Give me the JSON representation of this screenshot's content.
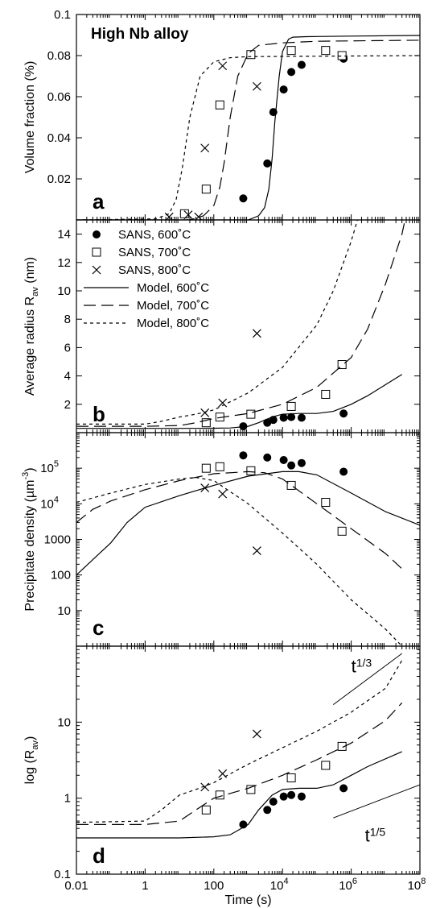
{
  "figure": {
    "title": "High Nb alloy",
    "x_axis": {
      "label": "Time (s)",
      "scale": "log",
      "range": [
        0.01,
        100000000
      ],
      "ticks": [
        {
          "value": 0.01,
          "label": "0.01",
          "base": "",
          "exp": ""
        },
        {
          "value": 1,
          "label": "1",
          "base": "",
          "exp": ""
        },
        {
          "value": 100,
          "label": "100",
          "base": "",
          "exp": ""
        },
        {
          "value": 10000,
          "label": "",
          "base": "10",
          "exp": "4"
        },
        {
          "value": 1000000,
          "label": "",
          "base": "10",
          "exp": "6"
        },
        {
          "value": 100000000,
          "label": "",
          "base": "10",
          "exp": "8"
        }
      ]
    },
    "legend": {
      "position": "top-left of panel b",
      "entries": [
        {
          "label": "SANS, 600˚C",
          "marker": "filled-circle"
        },
        {
          "label": "SANS, 700˚C",
          "marker": "open-square"
        },
        {
          "label": "SANS, 800˚C",
          "marker": "cross"
        },
        {
          "label": "Model, 600˚C",
          "line": "solid"
        },
        {
          "label": "Model, 700˚C",
          "line": "long-dash"
        },
        {
          "label": "Model, 800˚C",
          "line": "short-dash"
        }
      ]
    }
  },
  "chart_data": [
    {
      "panel": "a",
      "type": "scatter",
      "ylabel": "Volume fraction (%)",
      "yscale": "linear",
      "ylim": [
        0,
        0.1
      ],
      "yticks": [
        {
          "value": 0.02,
          "label": "0.02"
        },
        {
          "value": 0.04,
          "label": "0.04"
        },
        {
          "value": 0.06,
          "label": "0.06"
        },
        {
          "value": 0.08,
          "label": "0.08"
        },
        {
          "value": 0.1,
          "label": "0.1"
        }
      ],
      "series": [
        {
          "name": "SANS, 600˚C",
          "kind": "points",
          "marker": "filled-circle",
          "x": [
            720,
            3600,
            5400,
            10800,
            18000,
            36000,
            600000
          ],
          "y": [
            0.0105,
            0.0275,
            0.0525,
            0.0635,
            0.072,
            0.0755,
            0.0785
          ]
        },
        {
          "name": "SANS, 700˚C",
          "kind": "points",
          "marker": "open-square",
          "x": [
            14,
            60,
            150,
            1200,
            18000,
            180000,
            540000
          ],
          "y": [
            0.003,
            0.015,
            0.056,
            0.0805,
            0.0825,
            0.0825,
            0.08
          ]
        },
        {
          "name": "SANS, 800˚C",
          "kind": "points",
          "marker": "cross",
          "x": [
            5,
            18,
            36,
            55,
            180,
            1800
          ],
          "y": [
            0.0015,
            0.0025,
            0.0015,
            0.035,
            0.075,
            0.065
          ]
        },
        {
          "name": "Model, 600˚C",
          "kind": "line",
          "line": "solid",
          "x": [
            0.01,
            1000,
            2000,
            3000,
            4000,
            5000,
            6000,
            8000,
            10000,
            15000,
            20000,
            50000,
            100000,
            1000000,
            100000000
          ],
          "y": [
            0,
            0,
            0.002,
            0.006,
            0.015,
            0.03,
            0.048,
            0.07,
            0.082,
            0.088,
            0.089,
            0.0892,
            0.0893,
            0.0895,
            0.0898
          ]
        },
        {
          "name": "Model, 700˚C",
          "kind": "line",
          "line": "long-dash",
          "x": [
            0.01,
            20,
            50,
            100,
            150,
            200,
            300,
            500,
            1000,
            2000,
            10000,
            100000,
            100000000
          ],
          "y": [
            0,
            0,
            0.002,
            0.007,
            0.016,
            0.028,
            0.05,
            0.07,
            0.081,
            0.085,
            0.0862,
            0.087,
            0.0875
          ]
        },
        {
          "name": "Model, 800˚C",
          "kind": "line",
          "line": "short-dash",
          "x": [
            0.01,
            2,
            5,
            8,
            12,
            20,
            40,
            100,
            300,
            1000,
            100000000
          ],
          "y": [
            0,
            0.0005,
            0.003,
            0.01,
            0.025,
            0.05,
            0.07,
            0.077,
            0.079,
            0.0795,
            0.08
          ]
        }
      ]
    },
    {
      "panel": "b",
      "type": "scatter",
      "ylabel": "Average radius R",
      "ylabel_sub": "av",
      "ylabel_unit": " (nm)",
      "yscale": "linear",
      "ylim": [
        0,
        15
      ],
      "yticks": [
        {
          "value": 2,
          "label": "2"
        },
        {
          "value": 4,
          "label": "4"
        },
        {
          "value": 6,
          "label": "6"
        },
        {
          "value": 8,
          "label": "8"
        },
        {
          "value": 10,
          "label": "10"
        },
        {
          "value": 12,
          "label": "12"
        },
        {
          "value": 14,
          "label": "14"
        }
      ],
      "series": [
        {
          "name": "SANS, 600˚C",
          "kind": "points",
          "marker": "filled-circle",
          "x": [
            720,
            3600,
            5400,
            10800,
            18000,
            36000,
            600000
          ],
          "y": [
            0.45,
            0.7,
            0.9,
            1.05,
            1.1,
            1.05,
            1.35
          ]
        },
        {
          "name": "SANS, 700˚C",
          "kind": "points",
          "marker": "open-square",
          "x": [
            60,
            150,
            1200,
            18000,
            180000,
            540000
          ],
          "y": [
            0.7,
            1.1,
            1.3,
            1.85,
            2.7,
            4.8
          ]
        },
        {
          "name": "SANS, 800˚C",
          "kind": "points",
          "marker": "cross",
          "x": [
            55,
            180,
            1800
          ],
          "y": [
            1.4,
            2.1,
            7
          ]
        },
        {
          "name": "Model, 600˚C",
          "kind": "line",
          "line": "solid",
          "x": [
            0.01,
            10,
            100,
            300,
            1000,
            2000,
            5000,
            10000,
            30000,
            100000,
            300000,
            1000000,
            3000000,
            30000000
          ],
          "y": [
            0.3,
            0.3,
            0.31,
            0.33,
            0.45,
            0.7,
            1.1,
            1.3,
            1.35,
            1.35,
            1.5,
            2.0,
            2.6,
            4.1
          ]
        },
        {
          "name": "Model, 700˚C",
          "kind": "line",
          "line": "long-dash",
          "x": [
            0.01,
            1,
            10,
            30,
            100,
            1000,
            10000,
            100000,
            1000000,
            3000000,
            10000000,
            30000000,
            50000000
          ],
          "y": [
            0.45,
            0.45,
            0.5,
            0.7,
            1.0,
            1.35,
            2.0,
            3.2,
            5.3,
            7.3,
            10.5,
            14.0,
            16.5
          ]
        },
        {
          "name": "Model, 800˚C",
          "kind": "line",
          "line": "short-dash",
          "x": [
            0.01,
            1,
            3,
            10,
            30,
            100,
            1000,
            10000,
            100000,
            300000,
            1000000,
            2000000,
            3000000
          ],
          "y": [
            0.6,
            0.6,
            0.8,
            1.1,
            1.3,
            1.6,
            2.8,
            4.6,
            7.6,
            10.0,
            13.5,
            16.0,
            18.0
          ]
        }
      ]
    },
    {
      "panel": "c",
      "type": "scatter",
      "ylabel": "Precipitate density (µm",
      "ylabel_sup": "-3",
      "ylabel_unit": ")",
      "yscale": "log",
      "ylim": [
        1,
        1000000
      ],
      "yticks": [
        {
          "value": 10,
          "label": "10",
          "base": "",
          "exp": ""
        },
        {
          "value": 100,
          "label": "100",
          "base": "",
          "exp": ""
        },
        {
          "value": 1000,
          "label": "1000",
          "base": "",
          "exp": ""
        },
        {
          "value": 10000,
          "label": "",
          "base": "10",
          "exp": "4"
        },
        {
          "value": 100000,
          "label": "",
          "base": "10",
          "exp": "5"
        }
      ],
      "series": [
        {
          "name": "SANS, 600˚C",
          "kind": "points",
          "marker": "filled-circle",
          "x": [
            720,
            3600,
            10800,
            18000,
            36000,
            600000
          ],
          "y": [
            230000,
            200000,
            170000,
            120000,
            140000,
            80000
          ]
        },
        {
          "name": "SANS, 700˚C",
          "kind": "points",
          "marker": "open-square",
          "x": [
            60,
            150,
            1200,
            18000,
            180000,
            540000
          ],
          "y": [
            100000,
            110000,
            85000,
            33000,
            11000,
            1700
          ]
        },
        {
          "name": "SANS, 800˚C",
          "kind": "points",
          "marker": "cross",
          "x": [
            55,
            180,
            1800
          ],
          "y": [
            28000,
            19000,
            480
          ]
        },
        {
          "name": "Model, 600˚C",
          "kind": "line",
          "line": "solid",
          "x": [
            0.01,
            0.1,
            0.3,
            1,
            10,
            100,
            1000,
            10000,
            30000,
            100000,
            1000000,
            10000000,
            100000000
          ],
          "y": [
            100,
            800,
            3000,
            8000,
            17000,
            33000,
            60000,
            80000,
            80000,
            65000,
            20000,
            6000,
            2500
          ]
        },
        {
          "name": "Model, 700˚C",
          "kind": "line",
          "line": "long-dash",
          "x": [
            0.01,
            0.03,
            0.1,
            1,
            10,
            100,
            1000,
            3000,
            10000,
            100000,
            1000000,
            10000000,
            30000000
          ],
          "y": [
            3000,
            7000,
            12000,
            25000,
            45000,
            70000,
            80000,
            75000,
            50000,
            10000,
            2000,
            400,
            150
          ]
        },
        {
          "name": "Model, 800˚C",
          "kind": "line",
          "line": "short-dash",
          "x": [
            0.01,
            0.1,
            1,
            10,
            30,
            100,
            1000,
            10000,
            100000,
            1000000,
            10000000,
            30000000
          ],
          "y": [
            11000,
            20000,
            35000,
            50000,
            55000,
            45000,
            10000,
            1500,
            200,
            20,
            3,
            1
          ]
        }
      ]
    },
    {
      "panel": "d",
      "type": "scatter",
      "ylabel": "log (R",
      "ylabel_sub": "av",
      "ylabel_unit": ")",
      "yscale": "log",
      "ylim": [
        0.1,
        100
      ],
      "yticks": [
        {
          "value": 0.1,
          "label": "0.1"
        },
        {
          "value": 1,
          "label": "1"
        },
        {
          "value": 10,
          "label": "10"
        }
      ],
      "annotations": [
        {
          "base": "t",
          "exp": "1/3",
          "x": 1000000,
          "y": 45
        },
        {
          "base": "t",
          "exp": "1/5",
          "x": 2500000,
          "y": 0.27
        }
      ],
      "reference_lines": [
        {
          "name": "t^1/3",
          "x": [
            300000,
            30000000
          ],
          "y": [
            17,
            80
          ]
        },
        {
          "name": "t^1/5",
          "x": [
            300000,
            100000000
          ],
          "y": [
            0.55,
            1.5
          ]
        }
      ],
      "series": [
        {
          "name": "SANS, 600˚C",
          "kind": "points",
          "marker": "filled-circle",
          "x": [
            720,
            3600,
            5400,
            10800,
            18000,
            36000,
            600000
          ],
          "y": [
            0.45,
            0.7,
            0.9,
            1.05,
            1.1,
            1.05,
            1.35
          ]
        },
        {
          "name": "SANS, 700˚C",
          "kind": "points",
          "marker": "open-square",
          "x": [
            60,
            150,
            1200,
            18000,
            180000,
            540000
          ],
          "y": [
            0.7,
            1.1,
            1.3,
            1.85,
            2.7,
            4.8
          ]
        },
        {
          "name": "SANS, 800˚C",
          "kind": "points",
          "marker": "cross",
          "x": [
            55,
            180,
            1800
          ],
          "y": [
            1.4,
            2.1,
            7
          ]
        },
        {
          "name": "Model, 600˚C",
          "kind": "line",
          "line": "solid",
          "x": [
            0.01,
            10,
            100,
            300,
            1000,
            2000,
            5000,
            10000,
            30000,
            100000,
            300000,
            1000000,
            3000000,
            30000000
          ],
          "y": [
            0.3,
            0.3,
            0.31,
            0.33,
            0.45,
            0.7,
            1.1,
            1.3,
            1.35,
            1.35,
            1.5,
            2.0,
            2.6,
            4.1
          ]
        },
        {
          "name": "Model, 700˚C",
          "kind": "line",
          "line": "long-dash",
          "x": [
            0.01,
            1,
            10,
            30,
            100,
            1000,
            10000,
            100000,
            1000000,
            10000000,
            30000000
          ],
          "y": [
            0.45,
            0.45,
            0.5,
            0.7,
            1.0,
            1.35,
            2.0,
            3.2,
            5.3,
            10.5,
            18
          ]
        },
        {
          "name": "Model, 800˚C",
          "kind": "line",
          "line": "short-dash",
          "x": [
            0.01,
            1,
            3,
            10,
            30,
            100,
            1000,
            10000,
            100000,
            1000000,
            10000000,
            30000000
          ],
          "y": [
            0.48,
            0.5,
            0.7,
            1.1,
            1.3,
            1.6,
            2.8,
            4.6,
            7.6,
            13.5,
            28,
            65
          ]
        }
      ]
    }
  ]
}
